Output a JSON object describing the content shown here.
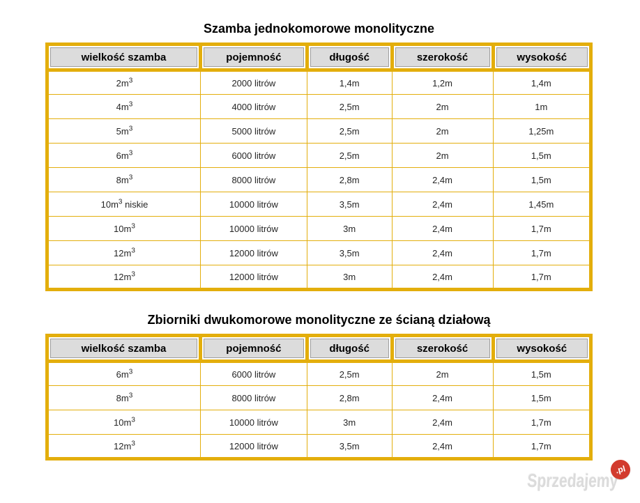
{
  "colors": {
    "accent_gold": "#E3AE0C",
    "header_bg": "#DCDCDC",
    "header_cell_border": "#9E9E9E",
    "body_text": "#262626",
    "watermark_text": "#DBDBDB",
    "watermark_badge_bg": "#D23B2E"
  },
  "columns": [
    "wielkość szamba",
    "pojemność",
    "długość",
    "szerokość",
    "wysokość"
  ],
  "tables": [
    {
      "title": "Szamba jednokomorowe monolityczne",
      "rows": [
        {
          "size_base": "2m",
          "size_sup": "3",
          "size_suffix": "",
          "values": [
            "2000 litrów",
            "1,4m",
            "1,2m",
            "1,4m"
          ]
        },
        {
          "size_base": "4m",
          "size_sup": "3",
          "size_suffix": "",
          "values": [
            "4000 litrów",
            "2,5m",
            "2m",
            "1m"
          ]
        },
        {
          "size_base": "5m",
          "size_sup": "3",
          "size_suffix": "",
          "values": [
            "5000 litrów",
            "2,5m",
            "2m",
            "1,25m"
          ]
        },
        {
          "size_base": "6m",
          "size_sup": "3",
          "size_suffix": "",
          "values": [
            "6000 litrów",
            "2,5m",
            "2m",
            "1,5m"
          ]
        },
        {
          "size_base": "8m",
          "size_sup": "3",
          "size_suffix": "",
          "values": [
            "8000 litrów",
            "2,8m",
            "2,4m",
            "1,5m"
          ]
        },
        {
          "size_base": "10m",
          "size_sup": "3",
          "size_suffix": " niskie",
          "values": [
            "10000 litrów",
            "3,5m",
            "2,4m",
            "1,45m"
          ]
        },
        {
          "size_base": "10m",
          "size_sup": "3",
          "size_suffix": "",
          "values": [
            "10000 litrów",
            "3m",
            "2,4m",
            "1,7m"
          ]
        },
        {
          "size_base": "12m",
          "size_sup": "3",
          "size_suffix": "",
          "values": [
            "12000 litrów",
            "3,5m",
            "2,4m",
            "1,7m"
          ]
        },
        {
          "size_base": "12m",
          "size_sup": "3",
          "size_suffix": "",
          "values": [
            "12000 litrów",
            "3m",
            "2,4m",
            "1,7m"
          ]
        }
      ]
    },
    {
      "title": "Zbiorniki dwukomorowe monolityczne ze ścianą działową",
      "rows": [
        {
          "size_base": "6m",
          "size_sup": "3",
          "size_suffix": "",
          "values": [
            "6000 litrów",
            "2,5m",
            "2m",
            "1,5m"
          ]
        },
        {
          "size_base": "8m",
          "size_sup": "3",
          "size_suffix": "",
          "values": [
            "8000 litrów",
            "2,8m",
            "2,4m",
            "1,5m"
          ]
        },
        {
          "size_base": "10m",
          "size_sup": "3",
          "size_suffix": "",
          "values": [
            "10000 litrów",
            "3m",
            "2,4m",
            "1,7m"
          ]
        },
        {
          "size_base": "12m",
          "size_sup": "3",
          "size_suffix": "",
          "values": [
            "12000 litrów",
            "3,5m",
            "2,4m",
            "1,7m"
          ]
        }
      ]
    }
  ],
  "watermark": {
    "brand": "Sprzedajemy",
    "badge": ".pl"
  }
}
